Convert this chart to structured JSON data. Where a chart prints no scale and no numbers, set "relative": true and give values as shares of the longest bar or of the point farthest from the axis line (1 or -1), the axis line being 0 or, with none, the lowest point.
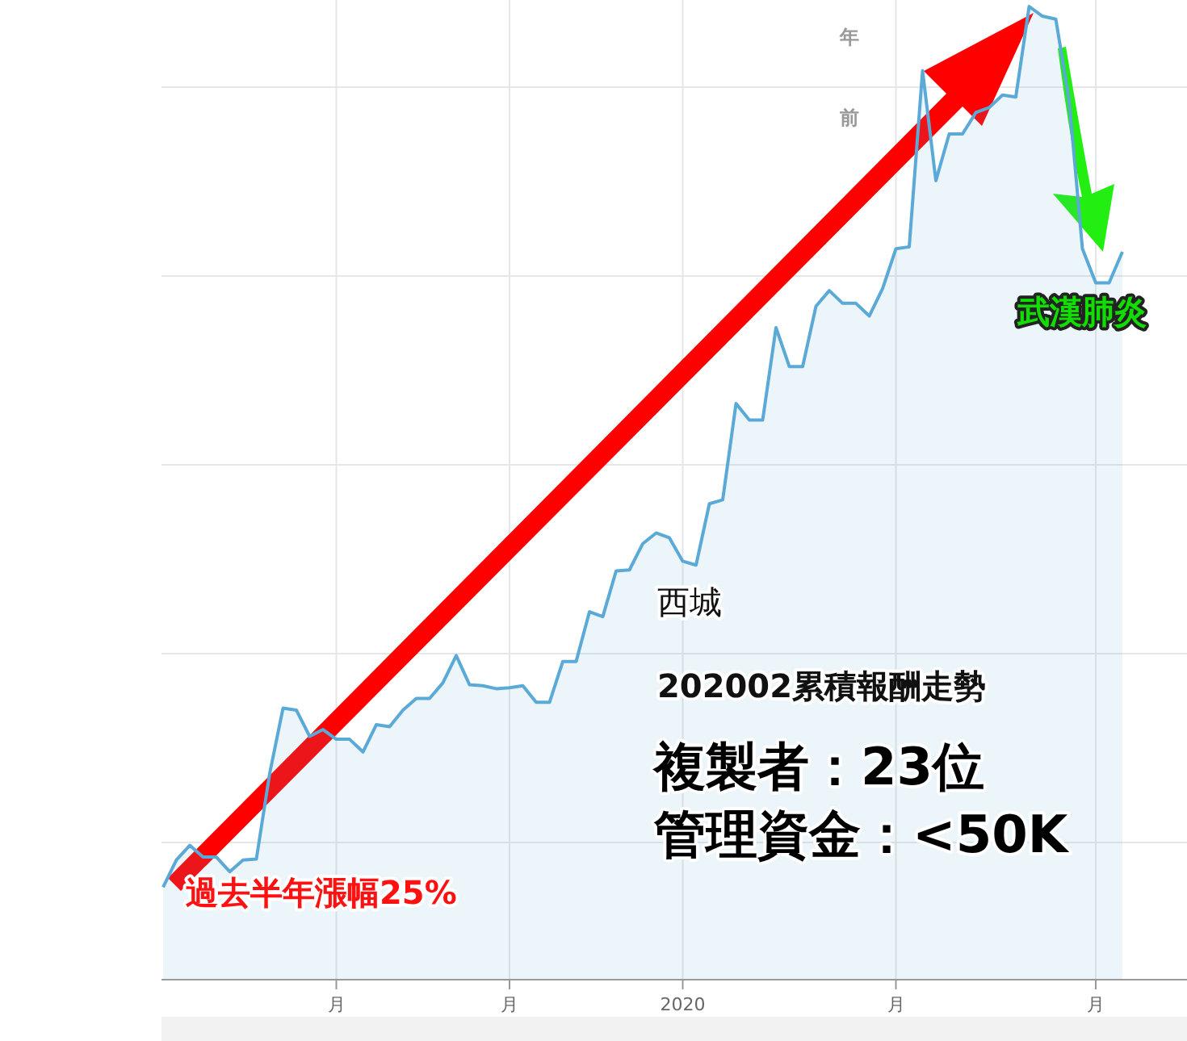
{
  "chart_data": {
    "type": "area",
    "relative": true,
    "grid": true,
    "categories": [
      null,
      null,
      null,
      null,
      null,
      null,
      null,
      null,
      null,
      null,
      null,
      null,
      null,
      "月",
      null,
      null,
      null,
      null,
      null,
      null,
      null,
      null,
      null,
      null,
      null,
      null,
      "月",
      null,
      null,
      null,
      null,
      null,
      null,
      null,
      null,
      null,
      null,
      null,
      null,
      "2020",
      null,
      null,
      null,
      null,
      null,
      null,
      null,
      null,
      null,
      null,
      null,
      null,
      null,
      null,
      null,
      "月",
      null,
      null,
      null,
      null,
      null,
      null,
      null,
      null,
      null,
      null,
      null,
      null,
      null,
      null,
      "月",
      null,
      null
    ],
    "series": [
      {
        "color": "#5aa9d6",
        "values": [
          0.095,
          0.123,
          0.138,
          0.126,
          0.126,
          0.111,
          0.123,
          0.124,
          0.212,
          0.279,
          0.277,
          0.25,
          0.257,
          0.247,
          0.247,
          0.234,
          0.262,
          0.26,
          0.277,
          0.289,
          0.289,
          0.305,
          0.333,
          0.303,
          0.302,
          0.299,
          0.3,
          0.302,
          0.285,
          0.285,
          0.327,
          0.327,
          0.378,
          0.373,
          0.42,
          0.421,
          0.448,
          0.459,
          0.454,
          0.43,
          0.426,
          0.489,
          0.493,
          0.592,
          0.575,
          0.575,
          0.67,
          0.63,
          0.63,
          0.692,
          0.708,
          0.695,
          0.695,
          0.682,
          0.71,
          0.751,
          0.753,
          0.934,
          0.821,
          0.869,
          0.869,
          0.891,
          0.896,
          0.909,
          0.907,
          1,
          0.99,
          0.987,
          0.904,
          0.751,
          0.716,
          0.716,
          0.748
        ]
      }
    ],
    "annotations": [
      "年",
      "前",
      "西城",
      "202002累積報酬走勢",
      "複製者：23位",
      "管理資金：<50K",
      "過去半年漲幅25%",
      "武漢肺炎"
    ]
  }
}
